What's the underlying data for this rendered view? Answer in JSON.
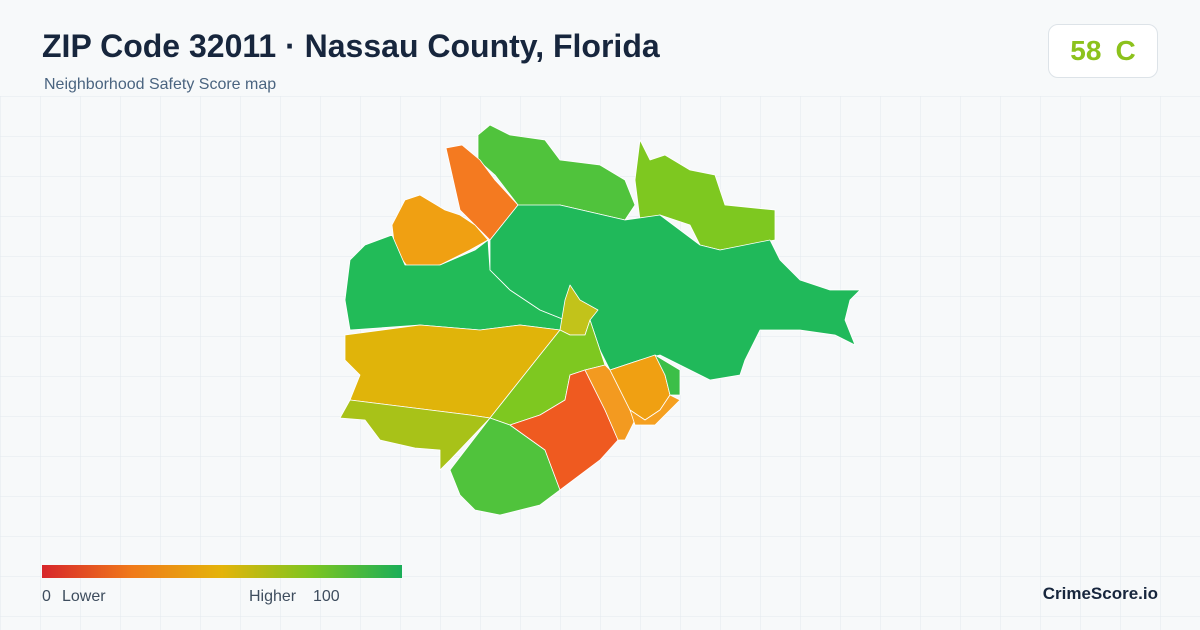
{
  "header": {
    "title": "ZIP Code 32011 · Nassau County, Florida",
    "subtitle": "Neighborhood Safety Score map"
  },
  "score": {
    "value": 58,
    "grade": "C"
  },
  "legend": {
    "min": 0,
    "min_label": "Lower",
    "max_label": "Higher",
    "max": 100
  },
  "brand": "CrimeScore.io"
}
